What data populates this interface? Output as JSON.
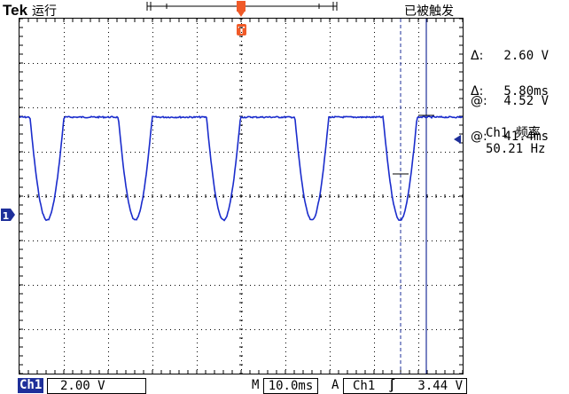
{
  "header": {
    "brand": "Tek",
    "run_state": "运行",
    "trigger_status": "已被触发"
  },
  "trigger_marker": "T",
  "channel_marker": "1",
  "cursor_readouts": {
    "voltage_delta_symbol": "Δ:",
    "voltage_delta": "2.60 V",
    "voltage_at_symbol": "@:",
    "voltage_at": "4.52 V",
    "time_delta_symbol": "Δ:",
    "time_delta": "5.80ms",
    "time_at_symbol": "@:",
    "time_at": "41.4ms"
  },
  "measurement": {
    "label": "Ch1 频率",
    "value": "50.21 Hz"
  },
  "footer": {
    "channel": "Ch1",
    "volts_per_div": "2.00 V",
    "timebase_prefix": "M",
    "timebase": "10.0ms",
    "trigger_mode": "A",
    "trigger_source": "Ch1",
    "trigger_slope_symbol": "∫",
    "trigger_level": "3.44 V"
  },
  "colors": {
    "trace": "#1a2ccc",
    "cursor": "#1e2f9a",
    "trigger": "#f05a28",
    "grid": "#000000"
  },
  "waveform": {
    "description_units": "volts",
    "high_level_v": 4.4,
    "low_level_v": -0.25,
    "period_ms": 19.92
  }
}
